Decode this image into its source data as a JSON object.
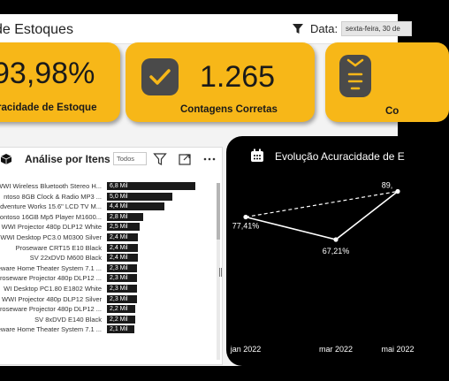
{
  "header": {
    "title": "de Estoques",
    "filter_label": "Data:",
    "date_value": "sexta-feira, 30 de"
  },
  "kpis": [
    {
      "value": "93,98%",
      "label": "racidade de Estoque"
    },
    {
      "value": "1.265",
      "label": "Contagens Corretas"
    },
    {
      "value": "",
      "label": "Co"
    }
  ],
  "items_panel": {
    "title": "Análise por Itens",
    "slicer_value": "Todos",
    "rows": [
      {
        "label": "WWI Wireless Bluetooth Stereo H...",
        "value": 6.8,
        "value_label": "6,8 Mil"
      },
      {
        "label": "ntoso 8GB Clock & Radio MP3 ...",
        "value": 5.0,
        "value_label": "5,0 Mil"
      },
      {
        "label": "dventure Works 15.6\" LCD TV M...",
        "value": 4.4,
        "value_label": "4,4 Mil"
      },
      {
        "label": "ontoso 16GB Mp5 Player M1600...",
        "value": 2.8,
        "value_label": "2,8 Mil"
      },
      {
        "label": "WWI Projector 480p DLP12 White",
        "value": 2.5,
        "value_label": "2,5 Mil"
      },
      {
        "label": "WWI Desktop PC3.0 M0300 Silver",
        "value": 2.4,
        "value_label": "2,4 Mil"
      },
      {
        "label": "Proseware CRT15 E10 Black",
        "value": 2.4,
        "value_label": "2,4 Mil"
      },
      {
        "label": "SV 22xDVD M600 Black",
        "value": 2.4,
        "value_label": "2,4 Mil"
      },
      {
        "label": "oseware Home Theater System 7.1 ...",
        "value": 2.3,
        "value_label": "2,3 Mil"
      },
      {
        "label": "roseware Projector 480p DLP12 ...",
        "value": 2.3,
        "value_label": "2,3 Mil"
      },
      {
        "label": "WI Desktop PC1.80 E1802 White",
        "value": 2.3,
        "value_label": "2,3 Mil"
      },
      {
        "label": "WWI Projector 480p DLP12 Silver",
        "value": 2.3,
        "value_label": "2,3 Mil"
      },
      {
        "label": "roseware Projector 480p DLP12 ...",
        "value": 2.2,
        "value_label": "2,2 Mil"
      },
      {
        "label": "SV 8xDVD E140 Black",
        "value": 2.2,
        "value_label": "2,2 Mil"
      },
      {
        "label": "oseware Home Theater System 7.1 ...",
        "value": 2.1,
        "value_label": "2,1 Mil"
      }
    ],
    "max_value": 6.8
  },
  "trend_panel": {
    "title": "Evolução Acuracidade de E"
  },
  "chart_data": {
    "type": "line",
    "title": "Evolução Acuracidade de E",
    "x": [
      "jan 2022",
      "mar 2022",
      "mai 2022"
    ],
    "series": [
      {
        "values": [
          77.41,
          67.21,
          89.0
        ],
        "labels": [
          "77,41%",
          "67,21%",
          "89,"
        ]
      }
    ],
    "trend_series": {
      "style": "dashed",
      "values": [
        77.41,
        89.0
      ]
    }
  },
  "colors": {
    "accent": "#f7b718",
    "bar": "#1a1a1a",
    "panel_dark": "#000000"
  }
}
